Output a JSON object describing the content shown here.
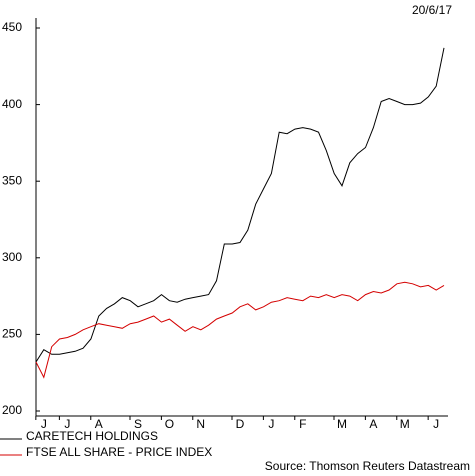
{
  "chart_data": {
    "type": "line",
    "date": "20/6/17",
    "source": "Source: Thomson Reuters Datastream",
    "categories": [
      null,
      "J",
      null,
      null,
      "J",
      null,
      null,
      null,
      "A",
      null,
      null,
      null,
      null,
      "S",
      null,
      null,
      null,
      "O",
      null,
      null,
      null,
      "N",
      null,
      null,
      null,
      null,
      "D",
      null,
      null,
      null,
      "J",
      null,
      null,
      null,
      "F",
      null,
      null,
      null,
      null,
      "M",
      null,
      null,
      null,
      "A",
      null,
      null,
      null,
      "M",
      null,
      null,
      null,
      "J",
      null
    ],
    "series": [
      {
        "name": "CARETECH HOLDINGS",
        "color": "#000000",
        "values": [
          232,
          240,
          237,
          237,
          238,
          239,
          241,
          247,
          262,
          267,
          270,
          274,
          272,
          268,
          270,
          272,
          276,
          272,
          271,
          273,
          274,
          275,
          276,
          285,
          309,
          309,
          310,
          318,
          335,
          345,
          355,
          382,
          381,
          384,
          385,
          384,
          382,
          370,
          355,
          347,
          362,
          368,
          372,
          385,
          402,
          404,
          402,
          400,
          400,
          401,
          405,
          412,
          437
        ]
      },
      {
        "name": "FTSE ALL SHARE - PRICE INDEX",
        "color": "#d40000",
        "values": [
          232,
          222,
          242,
          247,
          248,
          250,
          253,
          255,
          257,
          256,
          255,
          254,
          257,
          258,
          260,
          262,
          258,
          260,
          256,
          252,
          255,
          253,
          256,
          260,
          262,
          264,
          268,
          270,
          266,
          268,
          271,
          272,
          274,
          273,
          272,
          275,
          274,
          276,
          274,
          276,
          275,
          272,
          276,
          278,
          277,
          279,
          283,
          284,
          283,
          281,
          282,
          279,
          282
        ]
      }
    ],
    "ylim": [
      200,
      450
    ],
    "yticks": [
      200,
      250,
      300,
      350,
      400,
      450
    ]
  }
}
